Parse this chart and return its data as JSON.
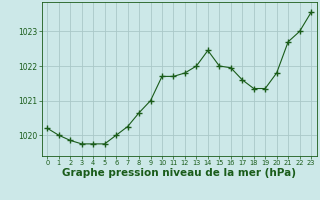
{
  "hours": [
    0,
    1,
    2,
    3,
    4,
    5,
    6,
    7,
    8,
    9,
    10,
    11,
    12,
    13,
    14,
    15,
    16,
    17,
    18,
    19,
    20,
    21,
    22,
    23
  ],
  "pressure": [
    1020.2,
    1020.0,
    1019.85,
    1019.75,
    1019.75,
    1019.75,
    1020.0,
    1020.25,
    1020.65,
    1021.0,
    1021.7,
    1021.7,
    1021.8,
    1022.0,
    1022.45,
    1022.0,
    1021.95,
    1021.6,
    1021.35,
    1021.35,
    1021.8,
    1022.7,
    1023.0,
    1023.55
  ],
  "line_color": "#1a5c1a",
  "marker_color": "#1a5c1a",
  "bg_color": "#cce8e8",
  "grid_color": "#aac8c8",
  "xlabel": "Graphe pression niveau de la mer (hPa)",
  "xlabel_color": "#1a5c1a",
  "yticks": [
    1020,
    1021,
    1022,
    1023
  ],
  "ylim": [
    1019.4,
    1023.85
  ],
  "xlim": [
    -0.5,
    23.5
  ],
  "tick_color": "#1a5c1a",
  "ytick_fontsize": 5.5,
  "xtick_fontsize": 4.8,
  "xlabel_fontsize": 7.5
}
